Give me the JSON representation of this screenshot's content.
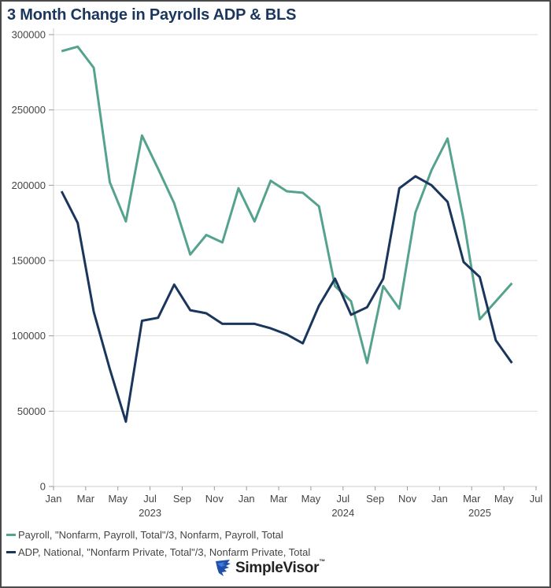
{
  "chart_data": {
    "type": "line",
    "title": "3 Month Change in Payrolls ADP & BLS",
    "xlabel": "",
    "ylabel": "",
    "ylim": [
      0,
      300000
    ],
    "yticks": [
      "0",
      "50000",
      "100000",
      "150000",
      "200000",
      "250000",
      "300000"
    ],
    "ytick_values": [
      0,
      50000,
      100000,
      150000,
      200000,
      250000,
      300000
    ],
    "xtick_labels": [
      "Jan",
      "Mar",
      "May",
      "Jul",
      "Sep",
      "Nov",
      "Jan",
      "Mar",
      "May",
      "Jul",
      "Sep",
      "Nov",
      "Jan",
      "Mar",
      "May",
      "Jul"
    ],
    "xtick_months": [
      0,
      2,
      4,
      6,
      8,
      10,
      12,
      14,
      16,
      18,
      20,
      22,
      24,
      26,
      28,
      30
    ],
    "year_labels": [
      {
        "label": "2023",
        "month": 6
      },
      {
        "label": "2024",
        "month": 18
      },
      {
        "label": "2025",
        "month": 26.5
      }
    ],
    "x_range_months": [
      0,
      30
    ],
    "x_start": "Jan 2023",
    "grid": true,
    "legend_position": "bottom-left",
    "series": [
      {
        "name": "Payroll, \"Nonfarm, Payroll, Total\"/3, Nonfarm, Payroll, Total",
        "color": "#55a38e",
        "values": [
          289000,
          292000,
          278000,
          202000,
          176000,
          233000,
          211000,
          188000,
          154000,
          167000,
          162000,
          198000,
          176000,
          203000,
          196000,
          195000,
          186000,
          133000,
          123000,
          82000,
          133000,
          118000,
          182000,
          210000,
          231000,
          177000,
          111000,
          123000,
          135000
        ]
      },
      {
        "name": "ADP, National, \"Nonfarm Private, Total\"/3, Nonfarm Private, Total",
        "color": "#1b365d",
        "values": [
          196000,
          175000,
          116000,
          78000,
          43000,
          110000,
          112000,
          134000,
          117000,
          115000,
          108000,
          108000,
          108000,
          105000,
          101000,
          95000,
          120000,
          138000,
          114000,
          119000,
          138000,
          198000,
          206000,
          200000,
          189000,
          149000,
          139000,
          97000,
          82000
        ]
      }
    ]
  },
  "brand": {
    "name": "SimpleVisor",
    "trademark": "™"
  }
}
